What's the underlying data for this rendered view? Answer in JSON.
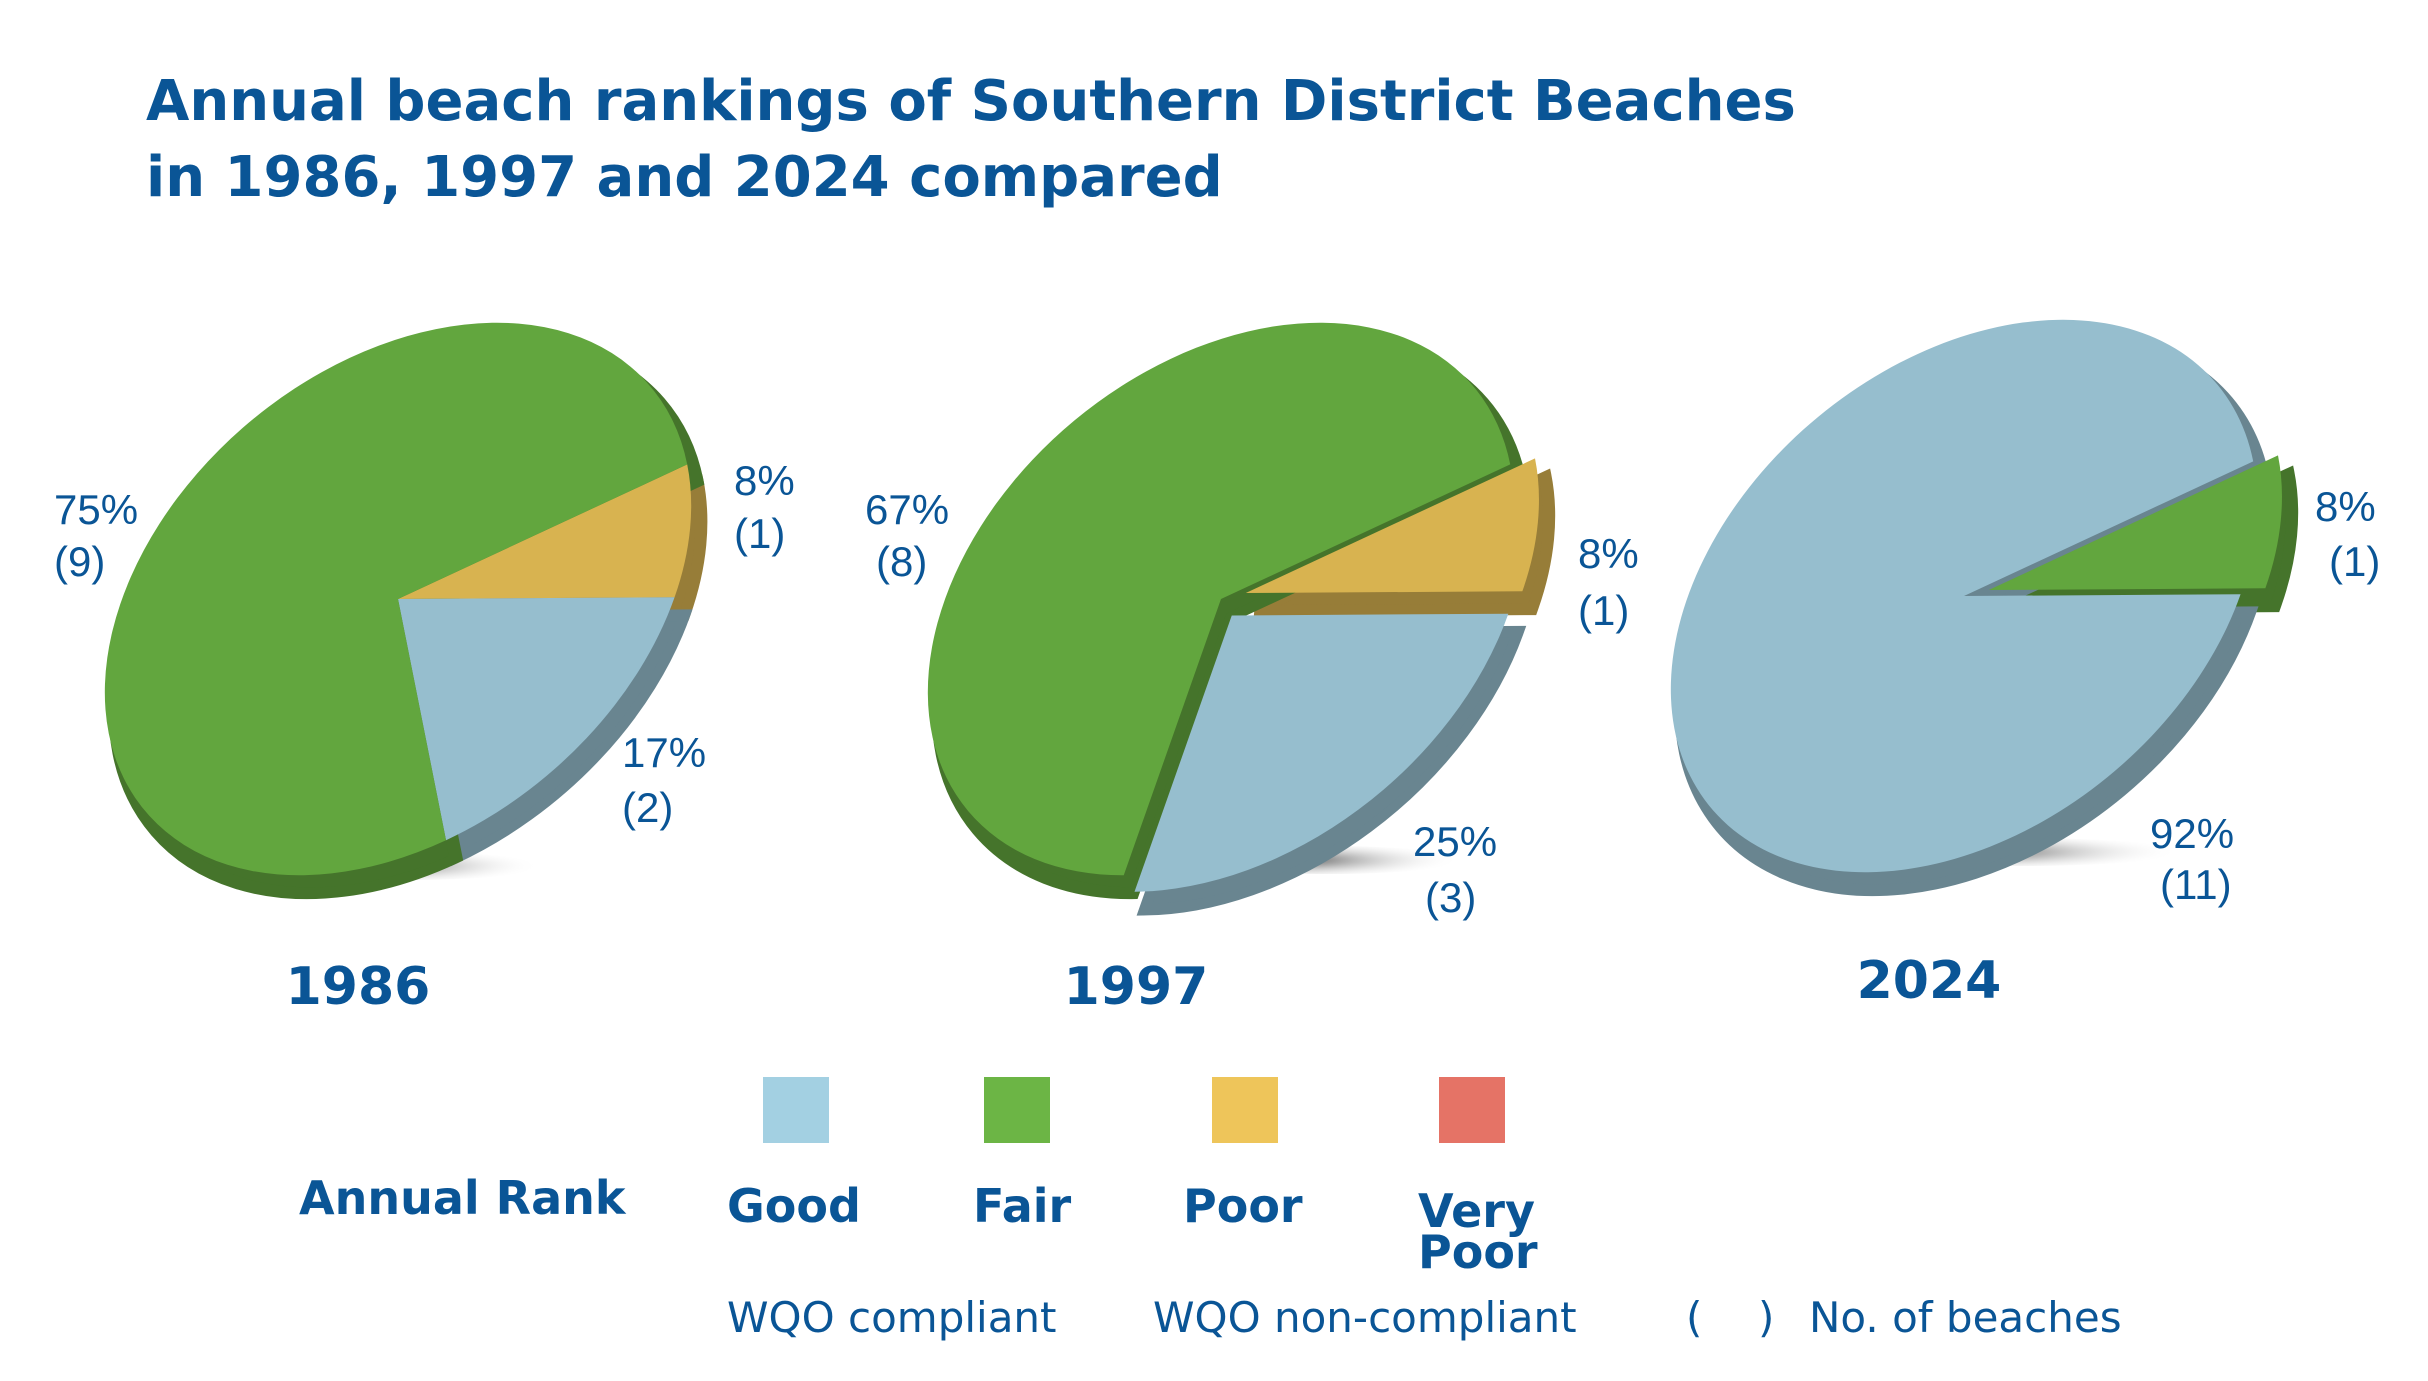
{
  "title_line1": "Annual beach rankings of Southern District Beaches",
  "title_line2": "in 1986, 1997 and 2024 compared",
  "chart_data": [
    {
      "type": "pie",
      "title": "1986",
      "slices": [
        {
          "category": "Poor",
          "value": 8,
          "count": 1,
          "pct_label": "8%",
          "count_label": "(1)",
          "color": "#d8b350"
        },
        {
          "category": "Good",
          "value": 17,
          "count": 2,
          "pct_label": "17%",
          "count_label": "(2)",
          "color": "#96bece"
        },
        {
          "category": "Fair",
          "value": 75,
          "count": 9,
          "pct_label": "75%",
          "count_label": "(9)",
          "color": "#62a63e"
        }
      ]
    },
    {
      "type": "pie",
      "title": "1997",
      "slices": [
        {
          "category": "Poor",
          "value": 8,
          "count": 1,
          "pct_label": "8%",
          "count_label": "(1)",
          "color": "#d8b350",
          "exploded": true
        },
        {
          "category": "Good",
          "value": 25,
          "count": 3,
          "pct_label": "25%",
          "count_label": "(3)",
          "color": "#96bece",
          "exploded": true
        },
        {
          "category": "Fair",
          "value": 67,
          "count": 8,
          "pct_label": "67%",
          "count_label": "(8)",
          "color": "#62a63e"
        }
      ]
    },
    {
      "type": "pie",
      "title": "2024",
      "slices": [
        {
          "category": "Fair",
          "value": 8,
          "count": 1,
          "pct_label": "8%",
          "count_label": "(1)",
          "color": "#62a63e",
          "exploded": true
        },
        {
          "category": "Good",
          "value": 92,
          "count": 11,
          "pct_label": "92%",
          "count_label": "(11)",
          "color": "#96bece"
        }
      ]
    }
  ],
  "legend": {
    "title": "Annual Rank",
    "items": [
      {
        "label": "Good",
        "color": "#a3d0e2"
      },
      {
        "label": "Fair",
        "color": "#6cb545"
      },
      {
        "label": "Poor",
        "color": "#eec55a"
      },
      {
        "label_line1": "Very",
        "label_line2": "Poor",
        "color": "#e57366"
      }
    ],
    "compliant": "WQO compliant",
    "non_compliant": "WQO non-compliant",
    "paren_open": "(",
    "paren_close": ")",
    "count_note": "No. of beaches"
  }
}
